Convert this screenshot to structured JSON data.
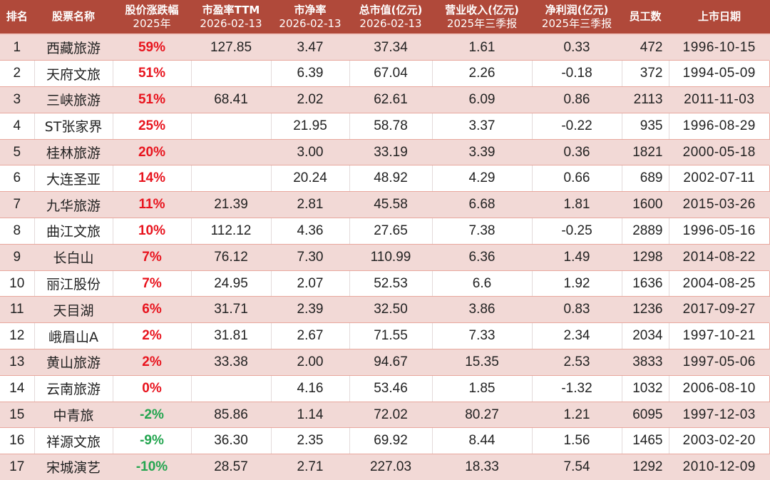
{
  "headers": [
    {
      "line1": "排名",
      "line2": ""
    },
    {
      "line1": "股票名称",
      "line2": ""
    },
    {
      "line1": "股价涨跌幅",
      "line2": "2025年"
    },
    {
      "line1": "市盈率TTM",
      "line2": "2026-02-13"
    },
    {
      "line1": "市净率",
      "line2": "2026-02-13"
    },
    {
      "line1": "总市值(亿元)",
      "line2": "2026-02-13"
    },
    {
      "line1": "营业收入(亿元)",
      "line2": "2025年三季报"
    },
    {
      "line1": "净利润(亿元)",
      "line2": "2025年三季报"
    },
    {
      "line1": "员工数",
      "line2": ""
    },
    {
      "line1": "上市日期",
      "line2": ""
    }
  ],
  "colors": {
    "header_bg": "#b0493a",
    "header_text": "#ffffff",
    "row_shade": "#f2d9d6",
    "up": "#e8141e",
    "down": "#23a54f"
  },
  "rows": [
    {
      "rank": "1",
      "name": "西藏旅游",
      "change": "59%",
      "dir": "up",
      "pe": "127.85",
      "pb": "3.47",
      "mcap": "37.34",
      "revenue": "1.61",
      "profit": "0.33",
      "employees": "472",
      "listed": "1996-10-15"
    },
    {
      "rank": "2",
      "name": "天府文旅",
      "change": "51%",
      "dir": "up",
      "pe": "",
      "pb": "6.39",
      "mcap": "67.04",
      "revenue": "2.26",
      "profit": "-0.18",
      "employees": "372",
      "listed": "1994-05-09"
    },
    {
      "rank": "3",
      "name": "三峡旅游",
      "change": "51%",
      "dir": "up",
      "pe": "68.41",
      "pb": "2.02",
      "mcap": "62.61",
      "revenue": "6.09",
      "profit": "0.86",
      "employees": "2113",
      "listed": "2011-11-03"
    },
    {
      "rank": "4",
      "name": "ST张家界",
      "change": "25%",
      "dir": "up",
      "pe": "",
      "pb": "21.95",
      "mcap": "58.78",
      "revenue": "3.37",
      "profit": "-0.22",
      "employees": "935",
      "listed": "1996-08-29"
    },
    {
      "rank": "5",
      "name": "桂林旅游",
      "change": "20%",
      "dir": "up",
      "pe": "",
      "pb": "3.00",
      "mcap": "33.19",
      "revenue": "3.39",
      "profit": "0.36",
      "employees": "1821",
      "listed": "2000-05-18"
    },
    {
      "rank": "6",
      "name": "大连圣亚",
      "change": "14%",
      "dir": "up",
      "pe": "",
      "pb": "20.24",
      "mcap": "48.92",
      "revenue": "4.29",
      "profit": "0.66",
      "employees": "689",
      "listed": "2002-07-11"
    },
    {
      "rank": "7",
      "name": "九华旅游",
      "change": "11%",
      "dir": "up",
      "pe": "21.39",
      "pb": "2.81",
      "mcap": "45.58",
      "revenue": "6.68",
      "profit": "1.81",
      "employees": "1600",
      "listed": "2015-03-26"
    },
    {
      "rank": "8",
      "name": "曲江文旅",
      "change": "10%",
      "dir": "up",
      "pe": "112.12",
      "pb": "4.36",
      "mcap": "27.65",
      "revenue": "7.38",
      "profit": "-0.25",
      "employees": "2889",
      "listed": "1996-05-16"
    },
    {
      "rank": "9",
      "name": "长白山",
      "change": "7%",
      "dir": "up",
      "pe": "76.12",
      "pb": "7.30",
      "mcap": "110.99",
      "revenue": "6.36",
      "profit": "1.49",
      "employees": "1298",
      "listed": "2014-08-22"
    },
    {
      "rank": "10",
      "name": "丽江股份",
      "change": "7%",
      "dir": "up",
      "pe": "24.95",
      "pb": "2.07",
      "mcap": "52.53",
      "revenue": "6.6",
      "profit": "1.92",
      "employees": "1636",
      "listed": "2004-08-25"
    },
    {
      "rank": "11",
      "name": "天目湖",
      "change": "6%",
      "dir": "up",
      "pe": "31.71",
      "pb": "2.39",
      "mcap": "32.50",
      "revenue": "3.86",
      "profit": "0.83",
      "employees": "1236",
      "listed": "2017-09-27"
    },
    {
      "rank": "12",
      "name": "峨眉山A",
      "change": "2%",
      "dir": "up",
      "pe": "31.81",
      "pb": "2.67",
      "mcap": "71.55",
      "revenue": "7.33",
      "profit": "2.34",
      "employees": "2034",
      "listed": "1997-10-21"
    },
    {
      "rank": "13",
      "name": "黄山旅游",
      "change": "2%",
      "dir": "up",
      "pe": "33.38",
      "pb": "2.00",
      "mcap": "94.67",
      "revenue": "15.35",
      "profit": "2.53",
      "employees": "3833",
      "listed": "1997-05-06"
    },
    {
      "rank": "14",
      "name": "云南旅游",
      "change": "0%",
      "dir": "up",
      "pe": "",
      "pb": "4.16",
      "mcap": "53.46",
      "revenue": "1.85",
      "profit": "-1.32",
      "employees": "1032",
      "listed": "2006-08-10"
    },
    {
      "rank": "15",
      "name": "中青旅",
      "change": "-2%",
      "dir": "down",
      "pe": "85.86",
      "pb": "1.14",
      "mcap": "72.02",
      "revenue": "80.27",
      "profit": "1.21",
      "employees": "6095",
      "listed": "1997-12-03"
    },
    {
      "rank": "16",
      "name": "祥源文旅",
      "change": "-9%",
      "dir": "down",
      "pe": "36.30",
      "pb": "2.35",
      "mcap": "69.92",
      "revenue": "8.44",
      "profit": "1.56",
      "employees": "1465",
      "listed": "2003-02-20"
    },
    {
      "rank": "17",
      "name": "宋城演艺",
      "change": "-10%",
      "dir": "down",
      "pe": "28.57",
      "pb": "2.71",
      "mcap": "227.03",
      "revenue": "18.33",
      "profit": "7.54",
      "employees": "1292",
      "listed": "2010-12-09"
    }
  ]
}
